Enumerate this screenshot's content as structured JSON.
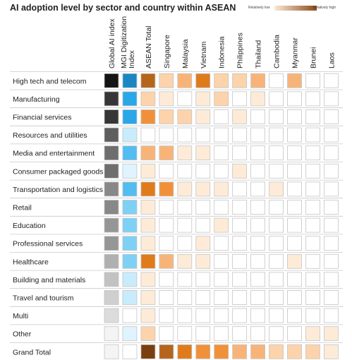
{
  "title": "AI adoption level by sector and country within ASEAN",
  "legend": {
    "low_label": "Relatively low",
    "high_label": "Relatively high"
  },
  "colors": {
    "grey_scale": [
      "#ebebeb",
      "#dcdcdc",
      "#cfcfcf",
      "#c2c2c2",
      "#b0b0b0",
      "#a3a3a3",
      "#969696",
      "#888888",
      "#6e6e6e",
      "#5e5e5e",
      "#363636",
      "#141414"
    ],
    "blue_scale": [
      "#eef9ff",
      "#dff4fe",
      "#c8ecfc",
      "#a6dff8",
      "#7fd0f5",
      "#52bdf0",
      "#2aa7e8",
      "#1a86c4"
    ],
    "orange_scale": [
      "#ffffff",
      "#fdebd8",
      "#fcd3ab",
      "#f8b478",
      "#f0913a",
      "#e07b1c",
      "#b6651c",
      "#7a3f0e"
    ]
  },
  "chart_data": {
    "type": "heatmap",
    "title": "AI adoption level by sector and country within ASEAN",
    "columns": [
      "Global AI index",
      "MGI Digitization Index",
      "ASEAN Total",
      "Singapore",
      "Malaysia",
      "Vietnam",
      "Indonesia",
      "Philippines",
      "Thailand",
      "Cambodia",
      "Myanmar",
      "Brunei",
      "Laos"
    ],
    "rows": [
      "High tech and telecom",
      "Manufacturing",
      "Financial services",
      "Resources and utilities",
      "Media and entertainment",
      "Consumer packaged goods",
      "Transportation and logistics",
      "Retail",
      "Education",
      "Professional services",
      "Healthcare",
      "Building and  materials",
      "Travel and tourism",
      "Multi",
      "Other",
      "Grand Total"
    ],
    "scales": {
      "global_ai_index": "grey 0-11",
      "mgi_digitization_index": "blue 0-7",
      "countries": "orange 0-7"
    },
    "values": [
      [
        11,
        7,
        6,
        2,
        3,
        5,
        2,
        2,
        3,
        0,
        3,
        0,
        0
      ],
      [
        10,
        6,
        2,
        1,
        0,
        1,
        2,
        0,
        1,
        0,
        0,
        0,
        0
      ],
      [
        10,
        6,
        4,
        2,
        2,
        1,
        0,
        1,
        0,
        0,
        0,
        0,
        0
      ],
      [
        9,
        2,
        0,
        0,
        0,
        0,
        0,
        0,
        0,
        0,
        0,
        0,
        0
      ],
      [
        8,
        5,
        3,
        3,
        1,
        1,
        0,
        0,
        0,
        0,
        0,
        0,
        0
      ],
      [
        8,
        1,
        1,
        0,
        0,
        0,
        0,
        1,
        0,
        0,
        0,
        0,
        0
      ],
      [
        7,
        5,
        5,
        4,
        1,
        1,
        1,
        0,
        0,
        1,
        0,
        0,
        0
      ],
      [
        7,
        4,
        1,
        0,
        0,
        0,
        0,
        0,
        0,
        0,
        0,
        0,
        0
      ],
      [
        6,
        4,
        1,
        0,
        0,
        0,
        1,
        0,
        0,
        0,
        0,
        0,
        0
      ],
      [
        6,
        4,
        1,
        0,
        0,
        1,
        0,
        0,
        0,
        0,
        0,
        0,
        0
      ],
      [
        4,
        4,
        5,
        3,
        1,
        1,
        0,
        0,
        0,
        0,
        1,
        0,
        0
      ],
      [
        3,
        2,
        1,
        0,
        0,
        0,
        0,
        0,
        0,
        0,
        0,
        0,
        0
      ],
      [
        2,
        2,
        1,
        0,
        0,
        0,
        0,
        0,
        0,
        0,
        0,
        0,
        0
      ],
      [
        1,
        0,
        1,
        0,
        0,
        0,
        0,
        0,
        0,
        0,
        0,
        0,
        0
      ],
      [
        0,
        1,
        2,
        0,
        0,
        0,
        0,
        0,
        0,
        0,
        0,
        1,
        1
      ],
      [
        0,
        0,
        7,
        6,
        5,
        4,
        4,
        3,
        3,
        2,
        2,
        2,
        1
      ]
    ]
  }
}
